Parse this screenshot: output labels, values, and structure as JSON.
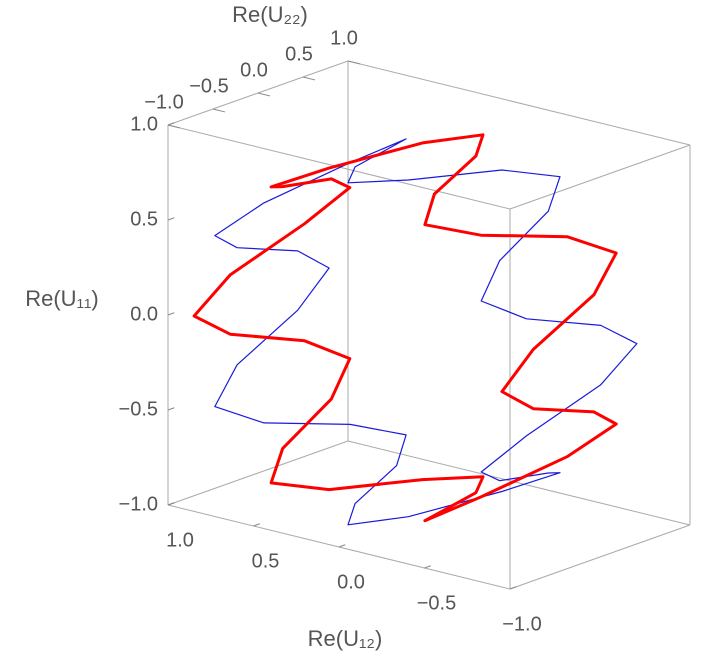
{
  "chart_data": {
    "type": "line3d",
    "x_label": "Re(U₁₂)",
    "y_label": "Re(U₂₂)",
    "z_label": "Re(U₁₁)",
    "xlim": [
      -1,
      1
    ],
    "ylim": [
      -1,
      1
    ],
    "zlim": [
      -1,
      1
    ],
    "xticks": [
      {
        "value": 1,
        "label": "1.0"
      },
      0.5,
      {
        "value": 0,
        "label": "0.0"
      },
      {
        "value": -0.5,
        "label": "−0.5"
      },
      {
        "value": -1,
        "label": "−1.0"
      }
    ],
    "yticks": [
      {
        "value": -1,
        "label": "−1.0"
      },
      {
        "value": -0.5,
        "label": "−0.5"
      },
      {
        "value": 0,
        "label": "0.0"
      },
      0.5,
      {
        "value": 1,
        "label": "1.0"
      }
    ],
    "zticks": [
      {
        "value": -1,
        "label": "−1.0"
      },
      {
        "value": -0.5,
        "label": "−0.5"
      },
      {
        "value": 0,
        "label": "0.0"
      },
      0.5,
      {
        "value": 1,
        "label": "1.0"
      }
    ],
    "series": [
      {
        "color": "#1a1adb",
        "width": 1.2,
        "x": [
          0.9,
          0.886,
          0.846,
          0.779,
          0.689,
          0.579,
          0.45,
          0.308,
          0.156,
          0,
          -0.156,
          -0.308,
          -0.45,
          -0.579,
          -0.689,
          -0.779,
          -0.846,
          -0.886,
          -0.9,
          -0.886,
          -0.846,
          -0.779,
          -0.689,
          -0.579,
          -0.45,
          -0.308,
          -0.156,
          0,
          0.156,
          0.308,
          0.45,
          0.579,
          0.689,
          0.779,
          0.846,
          0.886,
          0.9
        ],
        "y": [
          0.6,
          0.225,
          -0.525,
          -0.9,
          -0.525,
          0.225,
          0.6,
          0.225,
          -0.525,
          -0.9,
          -0.525,
          0.225,
          0.6,
          0.225,
          -0.525,
          -0.9,
          -0.525,
          0.225,
          0.6,
          0.225,
          -0.525,
          -0.9,
          -0.525,
          0.225,
          0.6,
          0.225,
          -0.525,
          -0.9,
          -0.525,
          0.225,
          0.6,
          0.225,
          -0.525,
          -0.9,
          -0.525,
          0.225,
          0.6
        ],
        "z": [
          0,
          0.156,
          0.308,
          0.45,
          0.579,
          0.689,
          0.779,
          0.846,
          0.886,
          0.9,
          0.886,
          0.846,
          0.779,
          0.689,
          0.579,
          0.45,
          0.308,
          0.156,
          0,
          -0.156,
          -0.308,
          -0.45,
          -0.579,
          -0.689,
          -0.779,
          -0.846,
          -0.886,
          -0.9,
          -0.886,
          -0.846,
          -0.779,
          -0.689,
          -0.579,
          -0.45,
          -0.308,
          -0.156,
          0
        ]
      },
      {
        "color": "#ff0000",
        "width": 3,
        "x": [
          0.9,
          0.886,
          0.846,
          0.779,
          0.689,
          0.579,
          0.45,
          0.308,
          0.156,
          0,
          -0.156,
          -0.308,
          -0.45,
          -0.579,
          -0.689,
          -0.779,
          -0.846,
          -0.886,
          -0.9,
          -0.886,
          -0.846,
          -0.779,
          -0.689,
          -0.579,
          -0.45,
          -0.308,
          -0.156,
          0,
          0.156,
          0.308,
          0.45,
          0.579,
          0.689,
          0.779,
          0.846,
          0.886,
          0.9
        ],
        "y": [
          -0.9,
          -0.525,
          0.225,
          0.6,
          0.225,
          -0.525,
          -0.9,
          -0.525,
          0.225,
          0.6,
          0.225,
          -0.525,
          -0.9,
          -0.525,
          0.225,
          0.6,
          0.225,
          -0.525,
          -0.9,
          -0.525,
          0.225,
          0.6,
          0.225,
          -0.525,
          -0.9,
          -0.525,
          0.225,
          0.6,
          0.225,
          -0.525,
          -0.9,
          -0.525,
          0.225,
          0.6,
          0.225,
          -0.525,
          -0.9
        ],
        "z": [
          0,
          0.156,
          0.308,
          0.45,
          0.579,
          0.689,
          0.779,
          0.846,
          0.886,
          0.9,
          0.886,
          0.846,
          0.779,
          0.689,
          0.579,
          0.45,
          0.308,
          0.156,
          0,
          -0.156,
          -0.308,
          -0.45,
          -0.579,
          -0.689,
          -0.779,
          -0.846,
          -0.886,
          -0.9,
          -0.886,
          -0.846,
          -0.779,
          -0.689,
          -0.579,
          -0.45,
          -0.308,
          -0.156,
          0
        ]
      }
    ]
  }
}
